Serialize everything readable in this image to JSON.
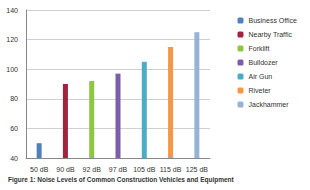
{
  "chart_data": {
    "type": "bar",
    "title": "Figure 1: Noise Levels of Common Construction Vehicles and Equipment",
    "categories": [
      "50 dB",
      "90 dB",
      "92 dB",
      "97 dB",
      "105 dB",
      "115 dB",
      "125 dB"
    ],
    "series": [
      {
        "name": "Business Office",
        "color": "#4F81BD",
        "values": [
          50,
          null,
          null,
          null,
          null,
          null,
          null
        ]
      },
      {
        "name": "Nearby Traffic",
        "color": "#A1233D",
        "values": [
          null,
          90,
          null,
          null,
          null,
          null,
          null
        ]
      },
      {
        "name": "Forklift",
        "color": "#8DC63F",
        "values": [
          null,
          null,
          92,
          null,
          null,
          null,
          null
        ]
      },
      {
        "name": "Bulldozer",
        "color": "#7B5EA7",
        "values": [
          null,
          null,
          null,
          97,
          null,
          null,
          null
        ]
      },
      {
        "name": "Air Gun",
        "color": "#4BACC6",
        "values": [
          null,
          null,
          null,
          null,
          105,
          null,
          null
        ]
      },
      {
        "name": "Riveter",
        "color": "#F79646",
        "values": [
          null,
          null,
          null,
          null,
          null,
          115,
          null
        ]
      },
      {
        "name": "Jackhammer",
        "color": "#95B3D7",
        "values": [
          null,
          null,
          null,
          null,
          null,
          null,
          125
        ]
      }
    ],
    "ylim": [
      40,
      140
    ],
    "yticks": [
      40,
      60,
      80,
      100,
      120,
      140
    ],
    "grid": true,
    "legend": "right"
  }
}
